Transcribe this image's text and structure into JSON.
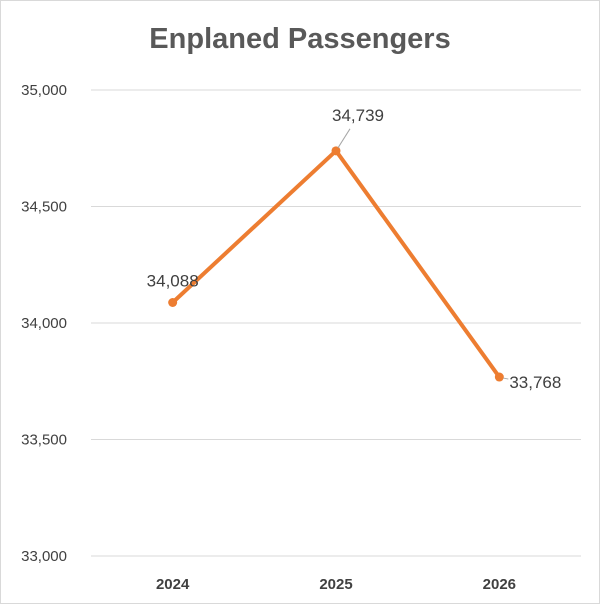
{
  "chart_data": {
    "type": "line",
    "title": "Enplaned Passengers",
    "xlabel": "",
    "ylabel": "",
    "categories": [
      "2024",
      "2025",
      "2026"
    ],
    "series": [
      {
        "values": [
          34088,
          34739,
          33768
        ],
        "labels": [
          "34,088",
          "34,739",
          "33,768"
        ]
      }
    ],
    "ylim": [
      33000,
      35000
    ],
    "yticks": [
      "33,000",
      "33,500",
      "34,000",
      "34,500",
      "35,000"
    ],
    "grid": true,
    "line_color": "#ED7D31",
    "grid_color": "#D9D9D9"
  }
}
